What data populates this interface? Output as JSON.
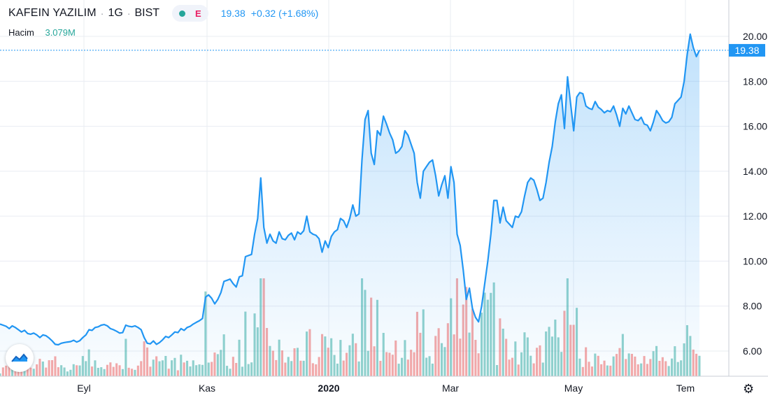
{
  "header": {
    "symbol": "KAFEIN YAZILIM",
    "interval": "1G",
    "exchange": "BIST",
    "badge_e": "E",
    "last_price": "19.38",
    "change": "+0.32 (+1.68%)"
  },
  "volume": {
    "label": "Hacim",
    "value": "3.079M"
  },
  "colors": {
    "line": "#2196f3",
    "vol_up": "#26a69a",
    "vol_down": "#ef5350",
    "grid": "#e9ecf2"
  },
  "chart_data": {
    "type": "area",
    "xlabels": [
      "Eyl",
      "Kas",
      "2020",
      "Mar",
      "May",
      "Tem"
    ],
    "ylim": [
      5.0,
      21.0
    ],
    "y_ticks": [
      "6.00",
      "8.00",
      "10.00",
      "12.00",
      "14.00",
      "16.00",
      "18.00",
      "20.00"
    ],
    "last_label": "19.38",
    "series": [
      {
        "values": [
          7.2,
          7.15,
          7.1,
          7.0,
          7.12,
          7.05,
          6.95,
          6.85,
          6.92,
          6.78,
          6.75,
          6.8,
          6.72,
          6.6,
          6.72,
          6.68,
          6.58,
          6.45,
          6.3,
          6.28,
          6.35,
          6.38,
          6.4,
          6.42,
          6.48,
          6.4,
          6.46,
          6.6,
          6.72,
          6.95,
          6.92,
          7.05,
          7.08,
          7.15,
          7.18,
          7.12,
          7.0,
          6.95,
          6.88,
          6.8,
          6.82,
          7.15,
          7.1,
          7.08,
          7.12,
          7.05,
          6.95,
          6.6,
          6.35,
          6.32,
          6.45,
          6.3,
          6.38,
          6.5,
          6.65,
          6.6,
          6.72,
          6.85,
          6.82,
          7.0,
          6.92,
          7.05,
          7.1,
          7.2,
          7.28,
          7.35,
          7.45,
          8.4,
          8.5,
          8.35,
          8.1,
          8.3,
          8.6,
          9.1,
          9.15,
          9.2,
          9.0,
          8.85,
          9.3,
          9.35,
          10.2,
          10.25,
          10.3,
          11.2,
          11.9,
          13.7,
          11.5,
          10.8,
          11.2,
          10.9,
          10.8,
          11.3,
          11.0,
          10.95,
          11.15,
          11.25,
          10.95,
          11.3,
          11.2,
          11.35,
          12.0,
          11.3,
          11.2,
          11.15,
          11.0,
          10.4,
          10.9,
          10.6,
          11.1,
          11.3,
          11.4,
          11.9,
          11.8,
          11.5,
          11.9,
          12.5,
          12.0,
          12.1,
          14.5,
          16.3,
          16.7,
          14.8,
          14.3,
          15.8,
          15.6,
          16.45,
          16.1,
          15.7,
          15.4,
          14.8,
          14.9,
          15.1,
          15.8,
          15.6,
          15.2,
          14.8,
          13.5,
          12.8,
          14.0,
          14.2,
          14.4,
          14.5,
          13.8,
          12.9,
          13.4,
          13.8,
          12.8,
          14.2,
          13.5,
          11.2,
          10.7,
          9.6,
          8.3,
          8.8,
          7.9,
          7.5,
          7.3,
          8.0,
          9.0,
          10.0,
          11.2,
          12.7,
          12.7,
          11.7,
          12.4,
          11.8,
          11.65,
          11.5,
          12.0,
          11.95,
          12.2,
          12.9,
          13.5,
          13.7,
          13.6,
          13.2,
          12.7,
          12.8,
          13.5,
          14.4,
          15.1,
          16.2,
          17.0,
          17.4,
          15.9,
          18.2,
          17.0,
          15.8,
          17.3,
          17.5,
          17.45,
          16.9,
          16.8,
          16.75,
          17.1,
          16.85,
          16.75,
          16.6,
          16.7,
          16.65,
          16.9,
          16.5,
          16.0,
          16.8,
          16.55,
          16.9,
          16.6,
          16.3,
          16.25,
          16.4,
          16.1,
          16.05,
          15.8,
          16.2,
          16.7,
          16.5,
          16.25,
          16.15,
          16.2,
          16.4,
          17.0,
          17.15,
          17.3,
          18.0,
          19.2,
          20.1,
          19.5,
          19.1,
          19.38
        ]
      }
    ]
  }
}
